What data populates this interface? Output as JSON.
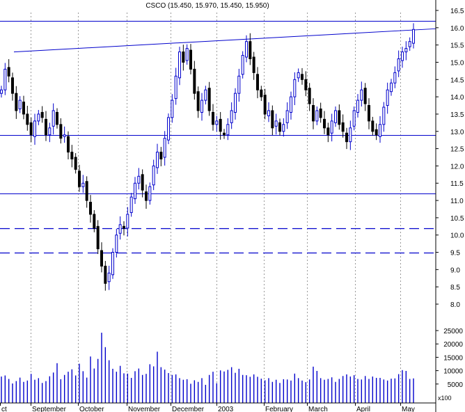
{
  "chart_data": {
    "type": "candlestick",
    "title": "CSCO (15.450, 15.970, 15.450, 15.950)",
    "price_axis": {
      "ylim": [
        7.5,
        16.6
      ],
      "ticks": [
        "16.5",
        "16.0",
        "15.5",
        "15.0",
        "14.5",
        "14.0",
        "13.5",
        "13.0",
        "12.5",
        "12.0",
        "11.5",
        "11.0",
        "10.5",
        "10.0",
        "9.5",
        "9.0",
        "8.5",
        "8.0"
      ]
    },
    "volume_axis": {
      "ylim": [
        0,
        29000
      ],
      "ticks": [
        "25000",
        "20000",
        "15000",
        "10000",
        "5000"
      ],
      "unit_label": "x100"
    },
    "x_labels": [
      "ct",
      "September",
      "October",
      "November",
      "December",
      "2003",
      "February",
      "March",
      "April",
      "May"
    ],
    "grid": "vertical-dotted",
    "annotations": {
      "trendline": {
        "from": [
          0,
          15.3
        ],
        "to": [
          1,
          15.97
        ]
      },
      "solid_levels": [
        16.2,
        12.9,
        11.2
      ],
      "dashed_levels": [
        10.2,
        9.5
      ]
    },
    "colors": {
      "up": "#0000cc",
      "down": "#000000",
      "lines": "#0000cc",
      "grid": "#999999"
    },
    "closes": [
      14.2,
      14.8,
      14.6,
      14.1,
      13.6,
      13.9,
      13.5,
      13.2,
      12.9,
      13.3,
      13.5,
      13.4,
      12.9,
      13.1,
      13.6,
      13.2,
      12.8,
      12.9,
      12.4,
      12.2,
      11.9,
      11.4,
      11.5,
      11.0,
      10.6,
      10.2,
      9.6,
      9.1,
      8.6,
      8.9,
      9.5,
      10.0,
      10.3,
      10.2,
      10.6,
      11.1,
      11.5,
      11.7,
      11.3,
      11.0,
      11.4,
      12.0,
      12.4,
      12.2,
      12.8,
      13.4,
      13.9,
      14.6,
      15.3,
      15.0,
      15.4,
      14.8,
      14.1,
      13.6,
      13.9,
      14.2,
      13.6,
      13.2,
      13.3,
      13.0,
      12.9,
      13.2,
      13.6,
      14.1,
      14.6,
      15.2,
      15.6,
      15.1,
      14.7,
      14.2,
      14.0,
      13.5,
      13.6,
      13.1,
      13.3,
      13.0,
      13.2,
      13.6,
      14.0,
      14.5,
      14.7,
      14.5,
      14.2,
      13.8,
      13.3,
      13.6,
      13.4,
      13.1,
      12.9,
      13.3,
      13.6,
      13.2,
      13.0,
      12.7,
      13.1,
      13.6,
      13.9,
      14.2,
      13.8,
      13.3,
      13.0,
      12.9,
      13.2,
      13.7,
      14.2,
      14.4,
      14.7,
      15.1,
      15.3,
      15.4,
      15.6,
      15.95
    ],
    "volumes": [
      7800,
      8200,
      6900,
      5200,
      6100,
      7400,
      5800,
      6300,
      8800,
      6600,
      7200,
      5400,
      6100,
      7900,
      9300,
      12800,
      6800,
      8400,
      9600,
      10500,
      8200,
      12600,
      9800,
      7400,
      15300,
      10800,
      14400,
      24200,
      18800,
      13900,
      10700,
      9600,
      11800,
      9000,
      8900,
      7300,
      9800,
      10800,
      8400,
      8800,
      12400,
      11600,
      17100,
      11300,
      10400,
      9100,
      8400,
      8600,
      7200,
      6600,
      6800,
      5100,
      6400,
      5800,
      7200,
      4700,
      8400,
      9600,
      5300,
      10100,
      9700,
      10300,
      11300,
      9200,
      10700,
      8400,
      8300,
      7700,
      8600,
      7700,
      7000,
      6400,
      7200,
      5800,
      6600,
      5400,
      6800,
      6700,
      6300,
      8900,
      7200,
      6300,
      5700,
      6700,
      11500,
      9900,
      7200,
      6600,
      6900,
      7500,
      5800,
      6900,
      8000,
      8600,
      7800,
      8300,
      6900,
      6700,
      8000,
      6900,
      7800,
      7300,
      7300,
      6700,
      6300,
      7000,
      7100,
      8700,
      10200,
      9900,
      6900,
      7100
    ]
  }
}
